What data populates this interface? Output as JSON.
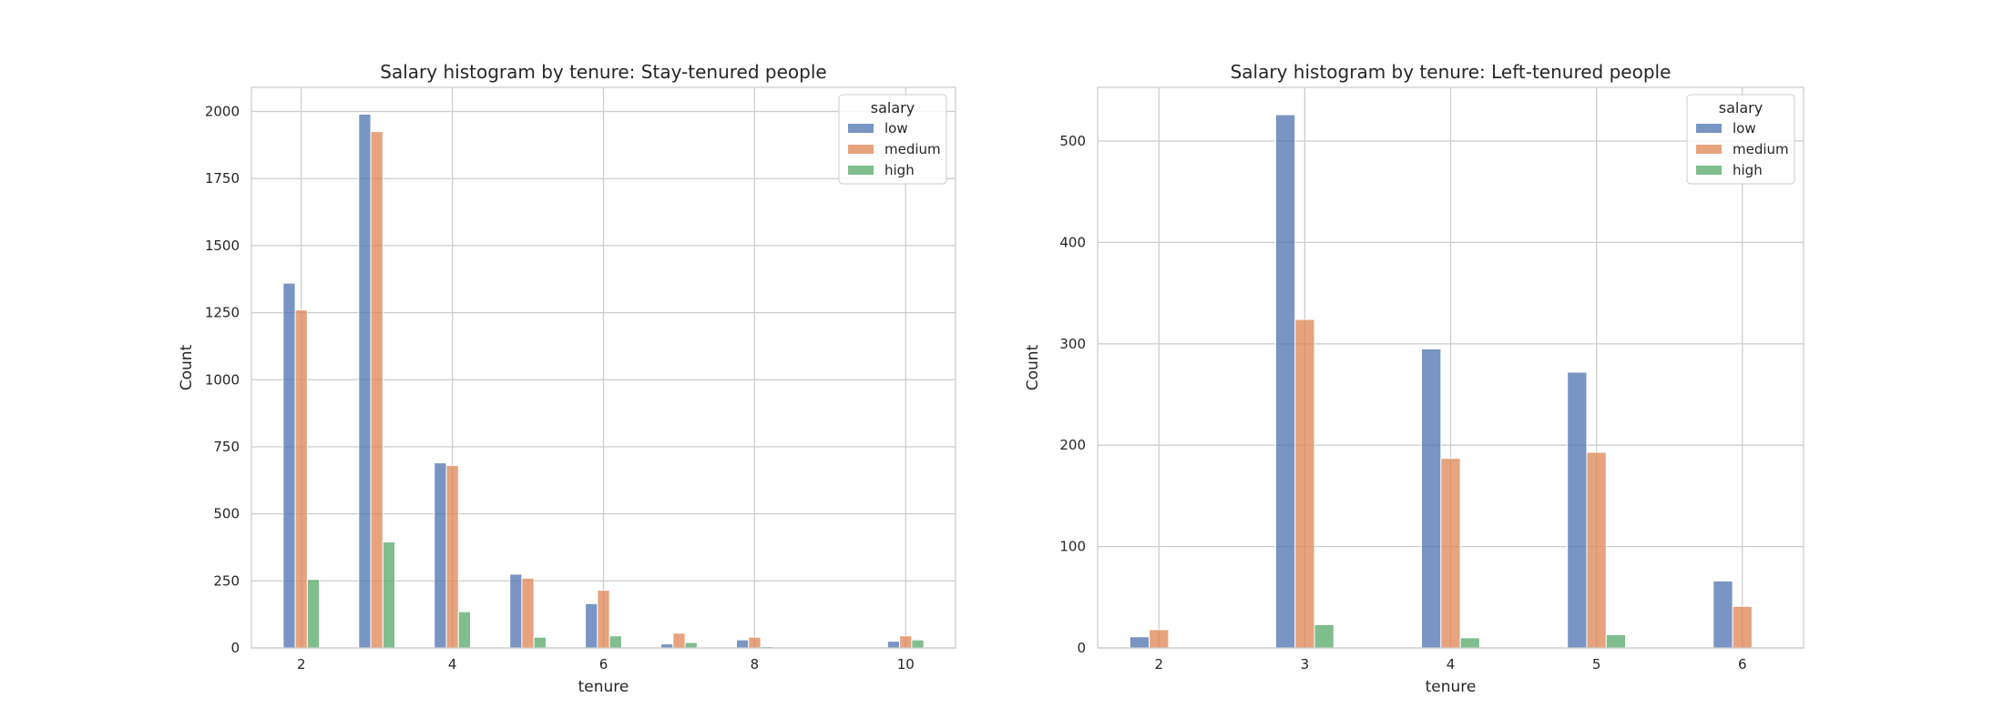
{
  "figure": {
    "background": "#ffffff"
  },
  "palette": {
    "low": "#4c72b0",
    "medium": "#dd8452",
    "high": "#55a868",
    "grid": "#cccccc",
    "frame": "#cccccc"
  },
  "chart_data": [
    {
      "type": "bar",
      "title": "Salary histogram by tenure: Stay-tenured people",
      "xlabel": "tenure",
      "ylabel": "Count",
      "xlim": [
        1.34,
        10.66
      ],
      "ylim": [
        0,
        2090
      ],
      "xticks": [
        2,
        4,
        6,
        8,
        10
      ],
      "yticks": [
        0,
        250,
        500,
        750,
        1000,
        1250,
        1500,
        1750,
        2000
      ],
      "x": [
        2,
        3,
        4,
        5,
        6,
        7,
        8,
        10
      ],
      "bar_width": 0.16,
      "grid": true,
      "legend": {
        "title": "salary",
        "position": "top-right"
      },
      "series": [
        {
          "name": "low",
          "color": "#4c72b0",
          "values": [
            1360,
            1990,
            690,
            275,
            165,
            15,
            30,
            25
          ]
        },
        {
          "name": "medium",
          "color": "#dd8452",
          "values": [
            1260,
            1925,
            680,
            260,
            215,
            55,
            40,
            45
          ]
        },
        {
          "name": "high",
          "color": "#55a868",
          "values": [
            255,
            395,
            135,
            40,
            45,
            20,
            5,
            30
          ]
        }
      ]
    },
    {
      "type": "bar",
      "title": "Salary histogram by tenure: Left-tenured people",
      "xlabel": "tenure",
      "ylabel": "Count",
      "xlim": [
        1.58,
        6.42
      ],
      "ylim": [
        0,
        553
      ],
      "xticks": [
        2,
        3,
        4,
        5,
        6
      ],
      "yticks": [
        0,
        100,
        200,
        300,
        400,
        500
      ],
      "x": [
        2,
        3,
        4,
        5,
        6
      ],
      "bar_width": 0.133,
      "grid": true,
      "legend": {
        "title": "salary",
        "position": "top-right"
      },
      "series": [
        {
          "name": "low",
          "color": "#4c72b0",
          "values": [
            11,
            526,
            295,
            272,
            66
          ]
        },
        {
          "name": "medium",
          "color": "#dd8452",
          "values": [
            18,
            324,
            187,
            193,
            41
          ]
        },
        {
          "name": "high",
          "color": "#55a868",
          "values": [
            0,
            23,
            10,
            13,
            0
          ]
        }
      ]
    }
  ]
}
